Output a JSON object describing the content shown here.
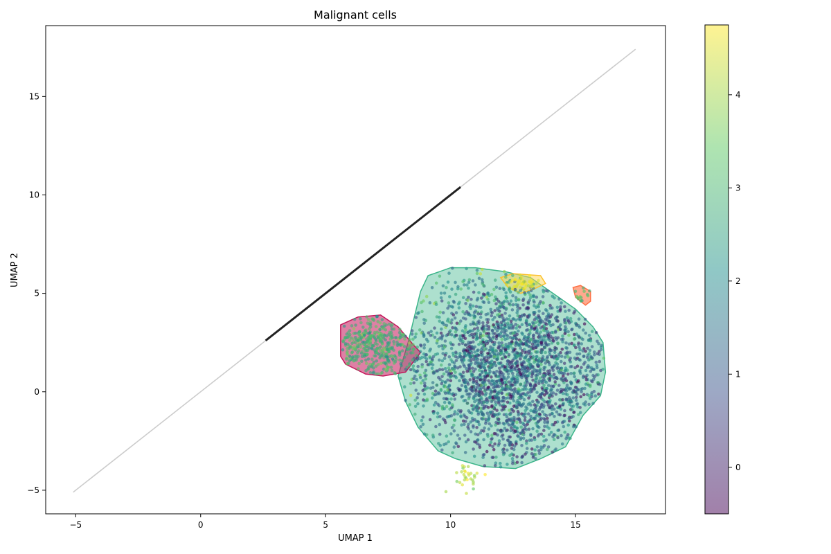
{
  "chart_data": {
    "type": "scatter",
    "title": "Malignant cells",
    "xlabel": "UMAP 1",
    "ylabel": "UMAP 2",
    "xlim": [
      -6.2,
      18.6
    ],
    "ylim": [
      -6.2,
      18.6
    ],
    "x_ticks": [
      -5,
      0,
      5,
      10,
      15
    ],
    "y_ticks": [
      -5,
      0,
      5,
      10,
      15
    ],
    "grid": false,
    "colorbar": {
      "range": [
        -0.5,
        4.75
      ],
      "ticks": [
        0,
        1,
        2,
        3,
        4
      ],
      "colormap": "viridis",
      "alpha": 0.5
    },
    "reference_line": {
      "start": [
        -5.1,
        -5.1
      ],
      "end": [
        17.4,
        17.4
      ],
      "color": "#cccccc"
    },
    "trajectory_segment": {
      "start": [
        2.6,
        2.6
      ],
      "end": [
        10.4,
        10.4
      ],
      "color": "#222222"
    },
    "clusters": [
      {
        "id": "main",
        "fill": "#3cb58a",
        "edge": "#3cb58a",
        "fill_opacity": 0.42,
        "hull": [
          [
            8.8,
            5.1
          ],
          [
            9.1,
            5.9
          ],
          [
            10.0,
            6.3
          ],
          [
            11.0,
            6.3
          ],
          [
            12.2,
            6.1
          ],
          [
            13.2,
            5.8
          ],
          [
            14.1,
            5.0
          ],
          [
            15.0,
            4.2
          ],
          [
            15.7,
            3.3
          ],
          [
            16.1,
            2.5
          ],
          [
            16.2,
            1.0
          ],
          [
            16.0,
            -0.2
          ],
          [
            15.3,
            -1.2
          ],
          [
            14.6,
            -2.8
          ],
          [
            13.6,
            -3.4
          ],
          [
            12.6,
            -3.9
          ],
          [
            11.3,
            -3.8
          ],
          [
            10.2,
            -3.4
          ],
          [
            9.5,
            -3.0
          ],
          [
            8.7,
            -1.8
          ],
          [
            8.2,
            -0.5
          ],
          [
            7.9,
            0.8
          ],
          [
            8.3,
            2.5
          ]
        ],
        "points": {
          "n": 2600,
          "center": [
            12.4,
            1.2
          ],
          "spread": [
            2.2,
            2.4
          ],
          "value_mean": 1.2,
          "value_sd": 0.9
        }
      },
      {
        "id": "left",
        "fill": "#c2185b",
        "edge": "#c2185b",
        "fill_opacity": 0.55,
        "hull": [
          [
            5.6,
            3.4
          ],
          [
            6.3,
            3.8
          ],
          [
            7.2,
            3.9
          ],
          [
            7.9,
            3.3
          ],
          [
            8.5,
            2.4
          ],
          [
            8.8,
            2.0
          ],
          [
            8.2,
            1.0
          ],
          [
            7.3,
            0.8
          ],
          [
            6.6,
            0.9
          ],
          [
            5.8,
            1.4
          ],
          [
            5.6,
            1.8
          ],
          [
            5.6,
            2.6
          ]
        ],
        "points": {
          "n": 380,
          "center": [
            7.0,
            2.3
          ],
          "spread": [
            0.9,
            0.8
          ],
          "value_mean": 2.9,
          "value_sd": 0.4
        }
      },
      {
        "id": "top",
        "fill": "#ffd54f",
        "edge": "#fbc02d",
        "fill_opacity": 0.5,
        "hull": [
          [
            12.0,
            5.8
          ],
          [
            12.5,
            6.0
          ],
          [
            13.6,
            5.9
          ],
          [
            13.8,
            5.5
          ],
          [
            13.3,
            5.2
          ],
          [
            12.8,
            5.0
          ],
          [
            12.3,
            5.3
          ]
        ],
        "points": {
          "n": 40,
          "center": [
            12.9,
            5.6
          ],
          "spread": [
            0.45,
            0.2
          ],
          "value_mean": 4.5,
          "value_sd": 0.2
        }
      },
      {
        "id": "right",
        "fill": "#ff7043",
        "edge": "#ff7043",
        "fill_opacity": 0.6,
        "hull": [
          [
            14.9,
            5.3
          ],
          [
            15.2,
            5.4
          ],
          [
            15.6,
            5.1
          ],
          [
            15.6,
            4.6
          ],
          [
            15.4,
            4.4
          ],
          [
            15.0,
            4.8
          ]
        ],
        "points": {
          "n": 14,
          "center": [
            15.3,
            4.9
          ],
          "spread": [
            0.2,
            0.25
          ],
          "value_mean": 3.0,
          "value_sd": 0.3
        }
      },
      {
        "id": "bottom",
        "fill": "#fdd835",
        "edge": "#fbc02d",
        "fill_opacity": 0.0,
        "hull": [],
        "points": {
          "n": 30,
          "center": [
            10.7,
            -4.3
          ],
          "spread": [
            0.25,
            0.35
          ],
          "value_mean": 4.1,
          "value_sd": 0.4
        }
      }
    ]
  }
}
